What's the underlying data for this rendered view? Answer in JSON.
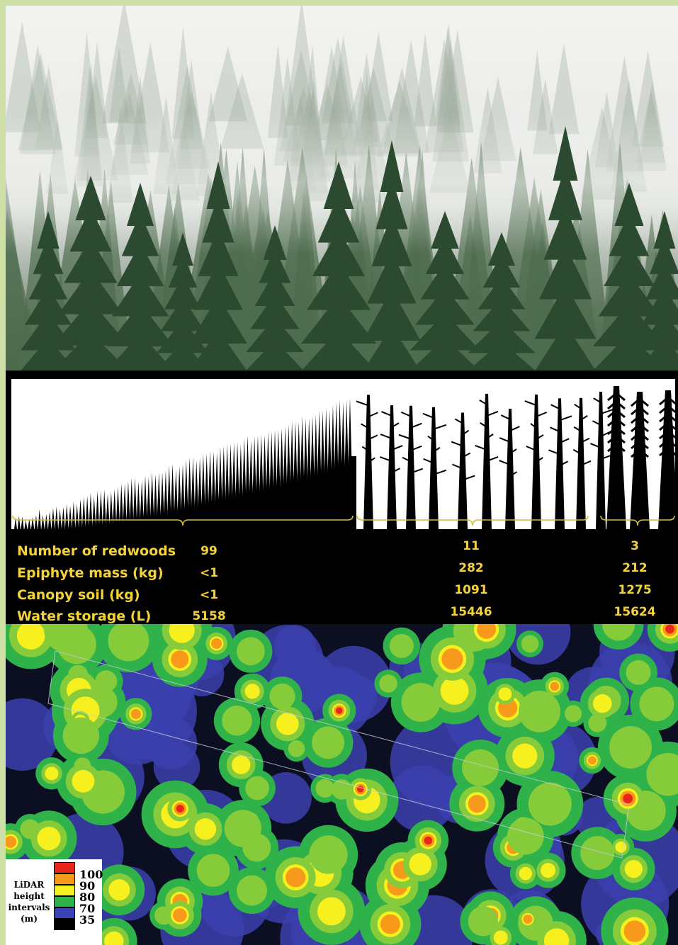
{
  "table": {
    "row_labels": [
      "Number of redwoods",
      "Epiphyte mass (kg)",
      "Canopy soil (kg)",
      "Water storage (L)"
    ],
    "groups": [
      {
        "values": [
          "99",
          "<1",
          "<1",
          "5158"
        ]
      },
      {
        "values": [
          "11",
          "282",
          "1091",
          "15446"
        ]
      },
      {
        "values": [
          "3",
          "212",
          "1275",
          "15624"
        ]
      }
    ]
  },
  "legend": {
    "title_lines": [
      "LiDAR",
      "height",
      "intervals",
      "(m)"
    ],
    "ticks": [
      "100",
      "90",
      "80",
      "70",
      "35"
    ],
    "colors": [
      "#e8261c",
      "#f79a1c",
      "#f5f01e",
      "#2fb24a",
      "#3b43b7",
      "#ffffff"
    ]
  },
  "colors": {
    "frame": "#cfe0a6",
    "label_text": "#f3d23a",
    "brace": "#c9c23a"
  }
}
